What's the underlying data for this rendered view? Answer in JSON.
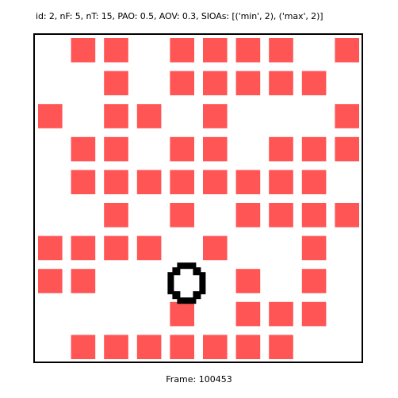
{
  "header": {
    "info_text": "id: 2, nF: 5, nT: 15, PAO: 0.5, AOV: 0.3, SIOAs: [('min', 2), ('max', 2)]"
  },
  "footer": {
    "frame_text": "Frame: 100453"
  },
  "colors": {
    "tile": "#ff5555",
    "agent": "#000000",
    "background": "#ffffff",
    "border": "#000000"
  },
  "grid": {
    "rows": 10,
    "cols": 10,
    "tile_cells": [
      [
        0,
        1
      ],
      [
        0,
        2
      ],
      [
        0,
        4
      ],
      [
        0,
        5
      ],
      [
        0,
        6
      ],
      [
        0,
        7
      ],
      [
        0,
        9
      ],
      [
        1,
        2
      ],
      [
        1,
        4
      ],
      [
        1,
        5
      ],
      [
        1,
        6
      ],
      [
        1,
        7
      ],
      [
        1,
        8
      ],
      [
        2,
        0
      ],
      [
        2,
        2
      ],
      [
        2,
        3
      ],
      [
        2,
        5
      ],
      [
        2,
        9
      ],
      [
        3,
        1
      ],
      [
        3,
        2
      ],
      [
        3,
        4
      ],
      [
        3,
        5
      ],
      [
        3,
        7
      ],
      [
        3,
        8
      ],
      [
        3,
        9
      ],
      [
        4,
        1
      ],
      [
        4,
        2
      ],
      [
        4,
        3
      ],
      [
        4,
        4
      ],
      [
        4,
        5
      ],
      [
        4,
        6
      ],
      [
        4,
        7
      ],
      [
        4,
        8
      ],
      [
        5,
        2
      ],
      [
        5,
        4
      ],
      [
        5,
        6
      ],
      [
        5,
        7
      ],
      [
        5,
        8
      ],
      [
        5,
        9
      ],
      [
        6,
        0
      ],
      [
        6,
        1
      ],
      [
        6,
        2
      ],
      [
        6,
        3
      ],
      [
        6,
        5
      ],
      [
        6,
        8
      ],
      [
        7,
        0
      ],
      [
        7,
        1
      ],
      [
        7,
        6
      ],
      [
        7,
        8
      ],
      [
        8,
        4
      ],
      [
        8,
        6
      ],
      [
        8,
        7
      ],
      [
        8,
        8
      ],
      [
        9,
        1
      ],
      [
        9,
        2
      ],
      [
        9,
        3
      ],
      [
        9,
        4
      ],
      [
        9,
        5
      ],
      [
        9,
        6
      ],
      [
        9,
        7
      ]
    ],
    "agent_cell": [
      7,
      4
    ],
    "agent_icon": "ring-agent-icon"
  }
}
